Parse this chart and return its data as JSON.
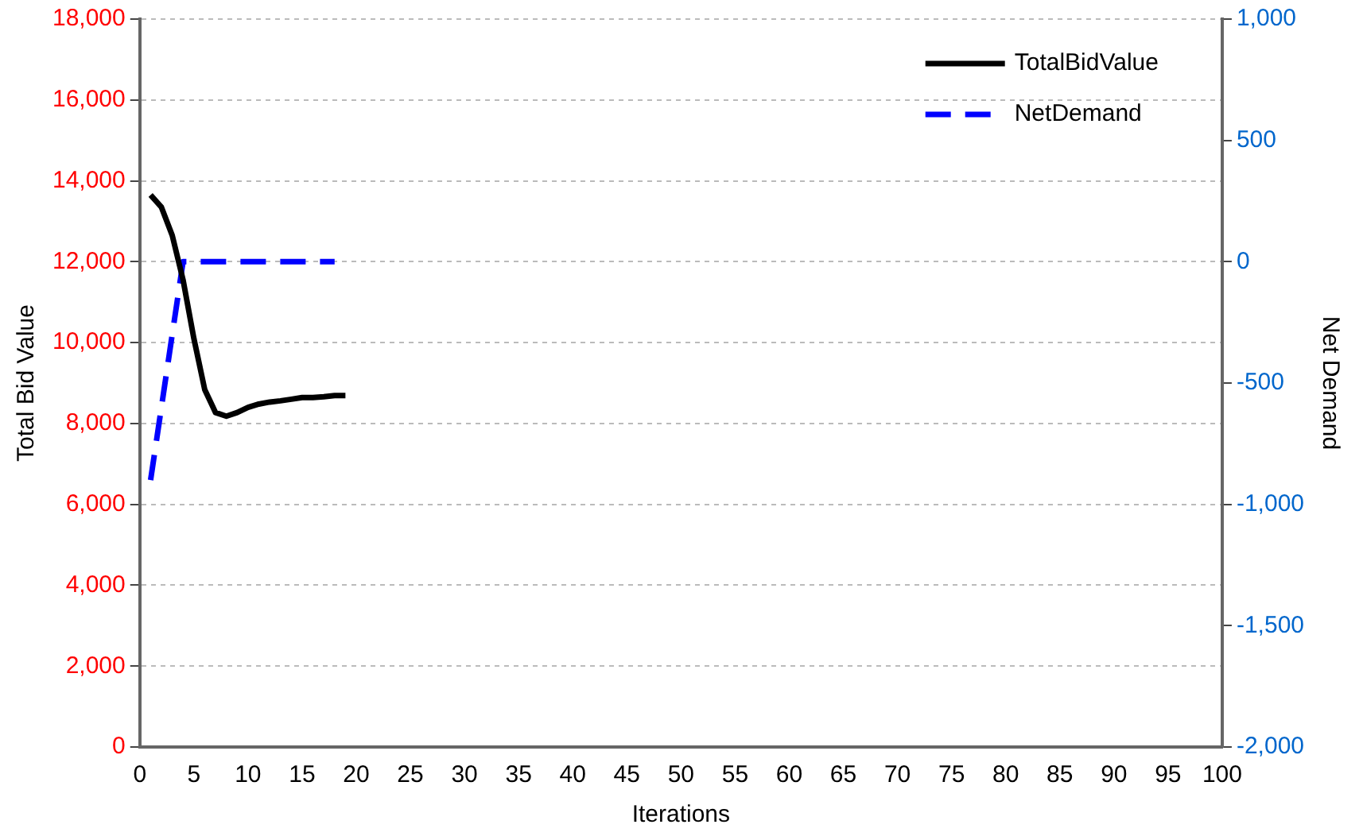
{
  "chart_data": {
    "type": "line",
    "xlabel": "Iterations",
    "ylabel": "Total Bid Value",
    "y2label": "Net Demand",
    "xlim": [
      0,
      100
    ],
    "xticks": [
      0,
      5,
      10,
      15,
      20,
      25,
      30,
      35,
      40,
      45,
      50,
      55,
      60,
      65,
      70,
      75,
      80,
      85,
      90,
      95,
      100
    ],
    "ylim": [
      0,
      18000
    ],
    "yticks": [
      {
        "value": 0,
        "label": "0"
      },
      {
        "value": 2000,
        "label": "2,000"
      },
      {
        "value": 4000,
        "label": "4,000"
      },
      {
        "value": 6000,
        "label": "6,000"
      },
      {
        "value": 8000,
        "label": "8,000"
      },
      {
        "value": 10000,
        "label": "10,000"
      },
      {
        "value": 12000,
        "label": "12,000"
      },
      {
        "value": 14000,
        "label": "14,000"
      },
      {
        "value": 16000,
        "label": "16,000"
      },
      {
        "value": 18000,
        "label": "18,000"
      }
    ],
    "y2lim": [
      -2000,
      1000
    ],
    "y2ticks": [
      {
        "value": -2000,
        "label": "-2,000"
      },
      {
        "value": -1500,
        "label": "-1,500"
      },
      {
        "value": -1000,
        "label": "-1,000"
      },
      {
        "value": -500,
        "label": "-500"
      },
      {
        "value": 0,
        "label": "0"
      },
      {
        "value": 500,
        "label": "500"
      },
      {
        "value": 1000,
        "label": "1,000"
      }
    ],
    "grid": "y",
    "legend": "top right",
    "marker": "none",
    "series": [
      {
        "name": "TotalBidValue",
        "color": "#000000",
        "line_style": "solid",
        "x": [
          1,
          2,
          3,
          4,
          5,
          6,
          7,
          8,
          9,
          10,
          11,
          12,
          13,
          14,
          15,
          16,
          17,
          18,
          19
        ],
        "values": [
          13650,
          13350,
          12650,
          11550,
          10100,
          8840,
          8270,
          8180,
          8270,
          8400,
          8480,
          8530,
          8560,
          8600,
          8640,
          8640,
          8660,
          8690,
          8690
        ]
      },
      {
        "name": "NetDemand",
        "color": "#0000ff",
        "line_style": "dashed",
        "axis": "y2",
        "x": [
          1,
          2,
          3,
          4,
          5,
          6,
          7,
          8,
          9,
          10,
          11,
          12,
          13,
          14,
          15,
          16,
          17,
          18
        ],
        "values": [
          -900,
          -600,
          -300,
          0,
          0,
          0,
          0,
          0,
          0,
          0,
          0,
          0,
          0,
          0,
          0,
          0,
          0,
          0
        ]
      }
    ]
  }
}
